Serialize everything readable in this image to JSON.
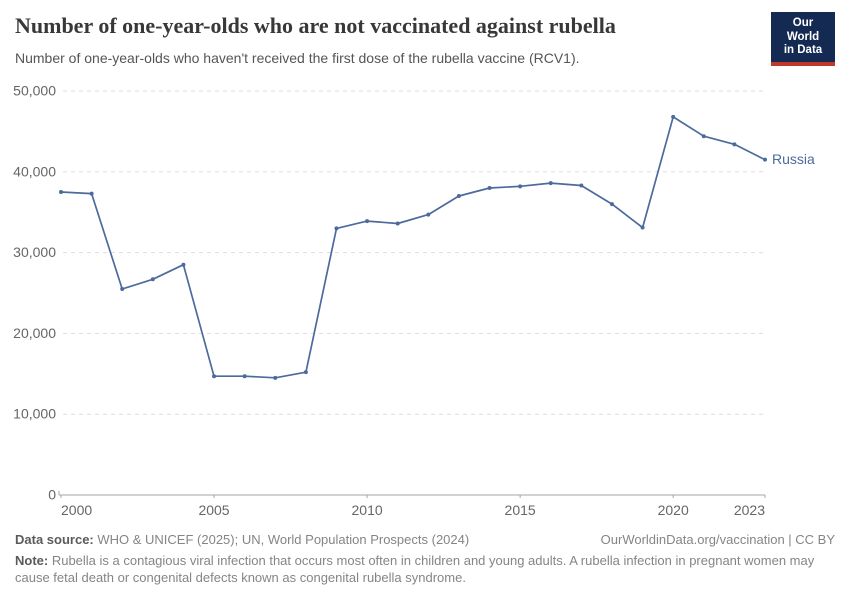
{
  "header": {
    "title": "Number of one-year-olds who are not vaccinated against rubella",
    "subtitle": "Number of one-year-olds who haven't received the first dose of the rubella vaccine (RCV1).",
    "logo_line1": "Our World",
    "logo_line2": "in Data",
    "logo_bg_color": "#142a52",
    "logo_accent_color": "#c0382b"
  },
  "chart_data": {
    "type": "line",
    "x": [
      2000,
      2001,
      2002,
      2003,
      2004,
      2005,
      2006,
      2007,
      2008,
      2009,
      2010,
      2011,
      2012,
      2013,
      2014,
      2015,
      2016,
      2017,
      2018,
      2019,
      2020,
      2021,
      2022,
      2023
    ],
    "series": [
      {
        "name": "Russia",
        "color": "#4c6a9c",
        "values": [
          37500,
          37300,
          25500,
          26700,
          28500,
          14700,
          14700,
          14500,
          15200,
          33000,
          33900,
          33600,
          34700,
          37000,
          38000,
          38200,
          38600,
          38300,
          36000,
          33100,
          46800,
          44400,
          43400,
          41500
        ]
      }
    ],
    "title": "Number of one-year-olds who are not vaccinated against rubella",
    "xlabel": "",
    "ylabel": "",
    "xlim": [
      2000,
      2023
    ],
    "ylim": [
      0,
      50000
    ],
    "x_ticks": [
      2000,
      2005,
      2010,
      2015,
      2020,
      2023
    ],
    "y_ticks": [
      0,
      10000,
      20000,
      30000,
      40000,
      50000
    ],
    "grid": "horizontal-dashed",
    "legend_position": "end-of-line-label",
    "end_label": "Russia",
    "axis_color": "#a5a5a5",
    "grid_color": "#dddddd",
    "tick_label_color": "#666666"
  },
  "footer": {
    "datasource_label": "Data source:",
    "datasource_text": " WHO & UNICEF (2025); UN, World Population Prospects (2024)",
    "link_text": "OurWorldinData.org/vaccination | CC BY",
    "note_label": "Note:",
    "note_text": " Rubella is a contagious viral infection that occurs most often in children and young adults. A rubella infection in pregnant women may cause fetal death or congenital defects known as congenital rubella syndrome."
  }
}
